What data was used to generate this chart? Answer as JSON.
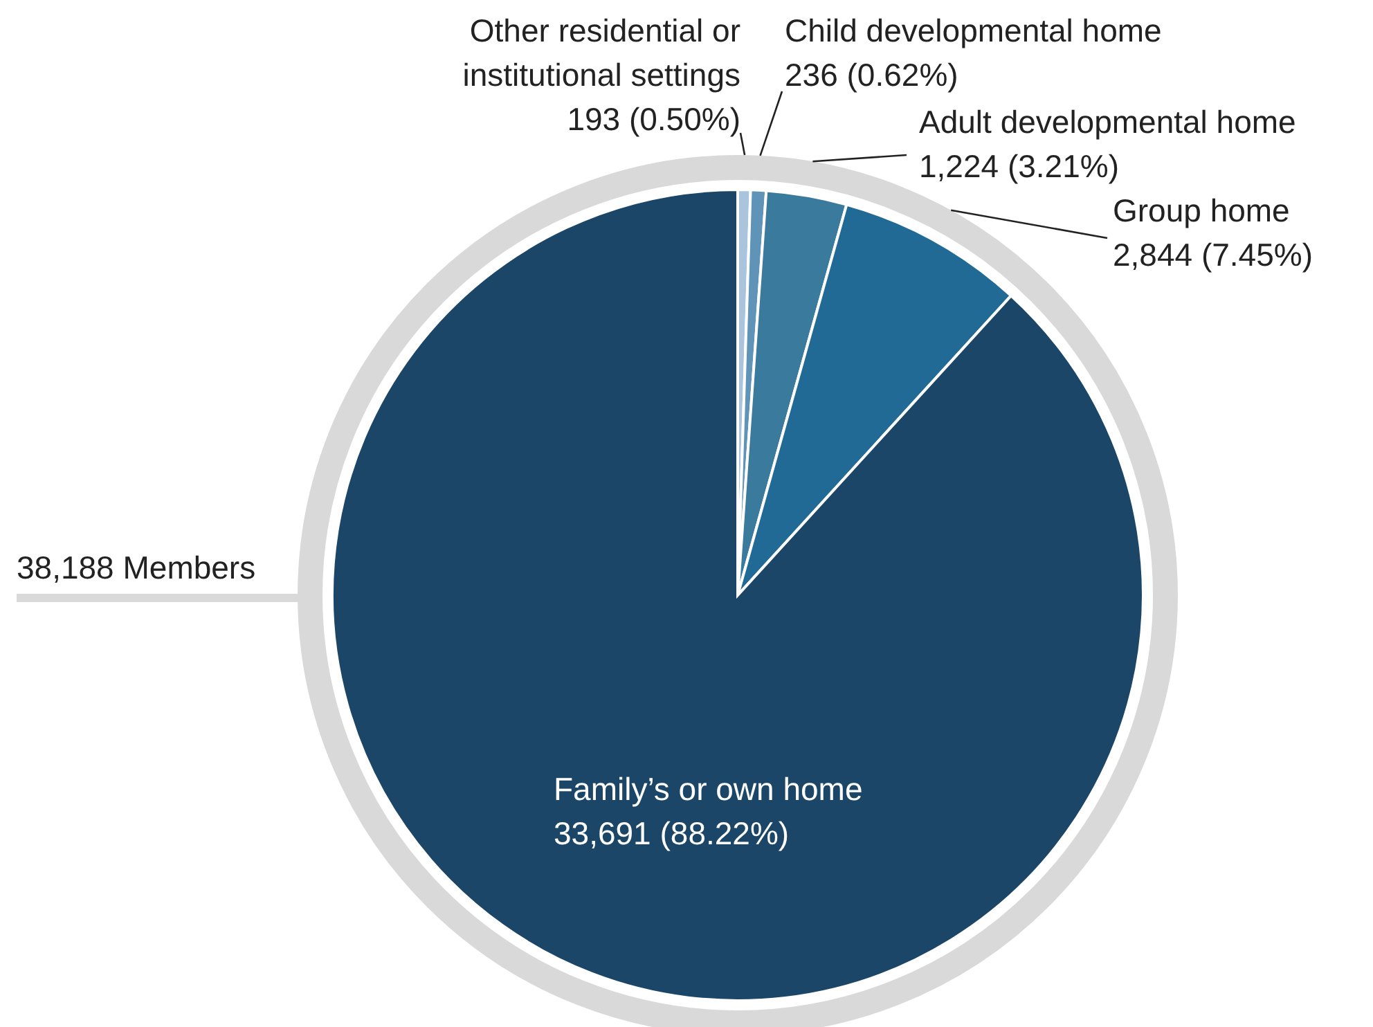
{
  "chart_data": {
    "type": "pie",
    "categories": [
      "Other residential or\ninstitutional settings",
      "Child developmental home",
      "Adult developmental home",
      "Group home",
      "Family’s or own home"
    ],
    "values": [
      193,
      236,
      1224,
      2844,
      33691
    ],
    "value_labels": [
      "193 (0.50%)",
      "236 (0.62%)",
      "1,224 (3.21%)",
      "2,844 (7.45%)",
      "33,691 (88.22%)"
    ],
    "colors": [
      "#a9c4dc",
      "#5f93b8",
      "#3a7a9c",
      "#216a96",
      "#1b4668"
    ],
    "annotations": [
      "38,188 Members"
    ]
  }
}
